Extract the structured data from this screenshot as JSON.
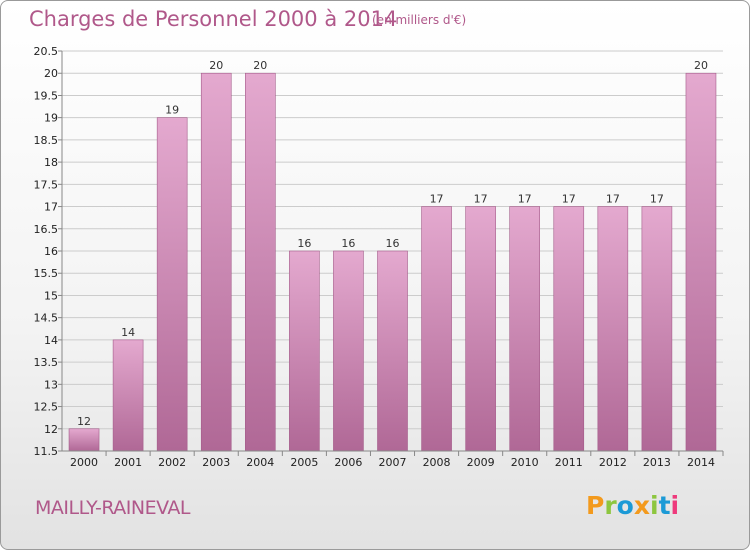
{
  "header": {
    "title": "Charges de Personnel 2000 à 2014",
    "subtitle": "(en milliers d'€)"
  },
  "footer": {
    "location": "MAILLY-RAINEVAL",
    "logo": "Proxiti",
    "logo_colors": [
      "#f39a1d",
      "#8dc63f",
      "#1c9ad6",
      "#f39a1d",
      "#8dc63f",
      "#1c9ad6",
      "#ee3a7c"
    ]
  },
  "colors": {
    "bar_top": "#e4a9cf",
    "bar_bottom": "#b06896",
    "axis": "#888888",
    "grid": "#cccccc",
    "text_accent": "#b0588a"
  },
  "chart_data": {
    "type": "bar",
    "title": "Charges de Personnel 2000 à 2014",
    "subtitle": "(en milliers d'€)",
    "categories": [
      "2000",
      "2001",
      "2002",
      "2003",
      "2004",
      "2005",
      "2006",
      "2007",
      "2008",
      "2009",
      "2010",
      "2011",
      "2012",
      "2013",
      "2014"
    ],
    "values": [
      12,
      14,
      19,
      20,
      20,
      16,
      16,
      16,
      17,
      17,
      17,
      17,
      17,
      17,
      20
    ],
    "value_labels": [
      "12",
      "14",
      "19",
      "20",
      "20",
      "16",
      "16",
      "16",
      "17",
      "17",
      "17",
      "17",
      "17",
      "17",
      "20"
    ],
    "ylim": [
      11.5,
      20.5
    ],
    "yticks": [
      11.5,
      12,
      12.5,
      13,
      13.5,
      14,
      14.5,
      15,
      15.5,
      16,
      16.5,
      17,
      17.5,
      18,
      18.5,
      19,
      19.5,
      20,
      20.5
    ],
    "ytick_labels": [
      "11.5",
      "12",
      "12.5",
      "13",
      "13.5",
      "14",
      "14.5",
      "15",
      "15.5",
      "16",
      "16.5",
      "17",
      "17.5",
      "18",
      "18.5",
      "19",
      "19.5",
      "20",
      "20.5"
    ],
    "grid": true
  }
}
